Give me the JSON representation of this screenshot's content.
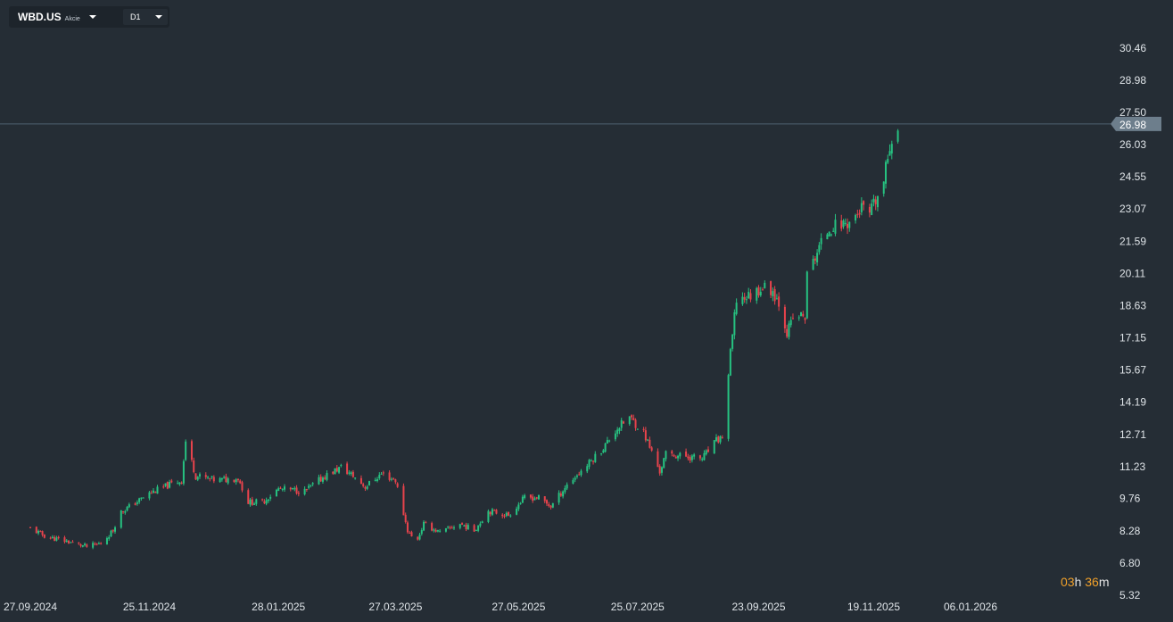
{
  "toolbar": {
    "symbol": "WBD.US",
    "instrument_type": "Akcie",
    "timeframe": "D1"
  },
  "countdown": {
    "hours": "03",
    "h_unit": "h",
    "minutes": "36",
    "m_unit": "m"
  },
  "colors": {
    "background": "#252d35",
    "up": "#26c281",
    "down": "#e8434c",
    "price_line": "#4f6170",
    "text": "#dfe4e8"
  },
  "chart_data": {
    "type": "candlestick",
    "title": "",
    "xlabel": "",
    "ylabel": "",
    "y_ticks": [
      "30.46",
      "28.98",
      "27.50",
      "26.03",
      "24.55",
      "23.07",
      "21.59",
      "20.11",
      "18.63",
      "17.15",
      "15.67",
      "14.19",
      "12.71",
      "11.23",
      "9.76",
      "8.28",
      "6.80",
      "5.32"
    ],
    "x_ticks": [
      "27.09.2024",
      "25.11.2024",
      "28.01.2025",
      "27.03.2025",
      "27.05.2025",
      "25.07.2025",
      "23.09.2025",
      "19.11.2025",
      "06.01.2026"
    ],
    "ylim": [
      5.32,
      30.46
    ],
    "xlim": [
      "2024-09-27",
      "2026-01-06"
    ],
    "last_price": "26.98",
    "legend": "none",
    "grid": false,
    "close_path": [
      [
        "2024-09-27",
        8.4
      ],
      [
        "2024-10-05",
        8.0
      ],
      [
        "2024-10-15",
        7.8
      ],
      [
        "2024-10-25",
        7.55
      ],
      [
        "2024-11-01",
        7.7
      ],
      [
        "2024-11-07",
        8.3
      ],
      [
        "2024-11-10",
        9.1
      ],
      [
        "2024-11-17",
        9.5
      ],
      [
        "2024-11-25",
        10.0
      ],
      [
        "2024-12-05",
        10.4
      ],
      [
        "2024-12-11",
        10.6
      ],
      [
        "2024-12-13",
        12.4
      ],
      [
        "2024-12-18",
        10.8
      ],
      [
        "2024-12-28",
        10.6
      ],
      [
        "2025-01-08",
        10.7
      ],
      [
        "2025-01-13",
        9.6
      ],
      [
        "2025-01-20",
        9.6
      ],
      [
        "2025-01-28",
        10.2
      ],
      [
        "2025-02-10",
        10.1
      ],
      [
        "2025-02-20",
        10.8
      ],
      [
        "2025-02-28",
        11.2
      ],
      [
        "2025-03-06",
        10.8
      ],
      [
        "2025-03-12",
        10.3
      ],
      [
        "2025-03-20",
        10.9
      ],
      [
        "2025-03-27",
        10.6
      ],
      [
        "2025-04-02",
        8.3
      ],
      [
        "2025-04-06",
        7.7
      ],
      [
        "2025-04-10",
        8.6
      ],
      [
        "2025-04-18",
        8.2
      ],
      [
        "2025-04-28",
        8.6
      ],
      [
        "2025-05-05",
        8.3
      ],
      [
        "2025-05-12",
        9.2
      ],
      [
        "2025-05-22",
        9.0
      ],
      [
        "2025-05-30",
        9.8
      ],
      [
        "2025-06-06",
        9.8
      ],
      [
        "2025-06-12",
        9.4
      ],
      [
        "2025-06-20",
        10.4
      ],
      [
        "2025-06-30",
        11.3
      ],
      [
        "2025-07-08",
        12.1
      ],
      [
        "2025-07-15",
        13.0
      ],
      [
        "2025-07-21",
        13.5
      ],
      [
        "2025-07-28",
        12.8
      ],
      [
        "2025-08-05",
        11.0
      ],
      [
        "2025-08-08",
        11.8
      ],
      [
        "2025-08-18",
        11.7
      ],
      [
        "2025-08-26",
        11.6
      ],
      [
        "2025-09-02",
        12.4
      ],
      [
        "2025-09-05",
        12.6
      ],
      [
        "2025-09-09",
        16.4
      ],
      [
        "2025-09-12",
        18.9
      ],
      [
        "2025-09-19",
        19.1
      ],
      [
        "2025-09-25",
        19.5
      ],
      [
        "2025-09-30",
        19.3
      ],
      [
        "2025-10-04",
        18.6
      ],
      [
        "2025-10-07",
        17.4
      ],
      [
        "2025-10-11",
        18.2
      ],
      [
        "2025-10-16",
        18.1
      ],
      [
        "2025-10-17",
        20.0
      ],
      [
        "2025-10-22",
        21.1
      ],
      [
        "2025-10-28",
        22.2
      ],
      [
        "2025-11-04",
        22.4
      ],
      [
        "2025-11-08",
        22.5
      ],
      [
        "2025-11-13",
        23.1
      ],
      [
        "2025-11-17",
        22.8
      ],
      [
        "2025-11-21",
        23.6
      ],
      [
        "2025-11-24",
        24.3
      ],
      [
        "2025-11-27",
        26.0
      ],
      [
        "2025-12-01",
        27.0
      ]
    ]
  }
}
